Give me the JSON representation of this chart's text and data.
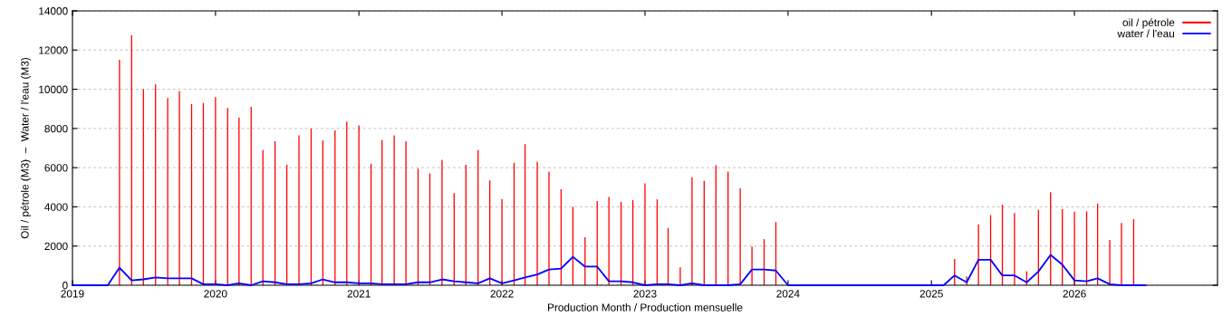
{
  "chart_data": {
    "type": "bar",
    "xlabel": "Production Month / Production mensuelle",
    "ylabel": "Oil / pétrole (M3)  –  Water / l'eau (M3)",
    "xlim": [
      "2019",
      "2027"
    ],
    "xticks": [
      "2019",
      "2020",
      "2021",
      "2022",
      "2023",
      "2024",
      "2025",
      "2026"
    ],
    "ylim": [
      0,
      14000
    ],
    "yticks": [
      0,
      2000,
      4000,
      6000,
      8000,
      10000,
      12000,
      14000
    ],
    "grid": "y",
    "legend": "top right",
    "series": [
      {
        "name": "oil / pétrole",
        "color": "#ff0000",
        "x": [
          "2019-05",
          "2019-06",
          "2019-07",
          "2019-08",
          "2019-09",
          "2019-10",
          "2019-11",
          "2019-12",
          "2020-01",
          "2020-02",
          "2020-03",
          "2020-04",
          "2020-05",
          "2020-06",
          "2020-07",
          "2020-08",
          "2020-09",
          "2020-10",
          "2020-11",
          "2020-12",
          "2021-01",
          "2021-02",
          "2021-03",
          "2021-04",
          "2021-05",
          "2021-06",
          "2021-07",
          "2021-08",
          "2021-09",
          "2021-10",
          "2021-11",
          "2021-12",
          "2022-01",
          "2022-02",
          "2022-03",
          "2022-04",
          "2022-05",
          "2022-06",
          "2022-07",
          "2022-08",
          "2022-09",
          "2022-10",
          "2022-11",
          "2022-12",
          "2023-01",
          "2023-02",
          "2023-03",
          "2023-04",
          "2023-05",
          "2023-06",
          "2023-07",
          "2023-08",
          "2023-09",
          "2023-10",
          "2023-11",
          "2023-12",
          "2025-03",
          "2025-04",
          "2025-05",
          "2025-06",
          "2025-07",
          "2025-08",
          "2025-09",
          "2025-10",
          "2025-11",
          "2025-12",
          "2026-01",
          "2026-02",
          "2026-03",
          "2026-04",
          "2026-05",
          "2026-06"
        ],
        "values": [
          11500,
          12750,
          10000,
          10250,
          9550,
          9900,
          9250,
          9300,
          9600,
          9050,
          8550,
          9100,
          6900,
          7350,
          6150,
          7650,
          8000,
          7400,
          7900,
          8350,
          8150,
          6200,
          7400,
          7650,
          7350,
          5950,
          5700,
          6400,
          4700,
          6150,
          6900,
          5350,
          4400,
          6250,
          7200,
          6300,
          5800,
          4900,
          4000,
          2450,
          4300,
          4500,
          4250,
          4350,
          5200,
          4380,
          2920,
          910,
          5510,
          5320,
          6120,
          5800,
          4940,
          1970,
          2350,
          3230,
          1340,
          450,
          3110,
          3580,
          4110,
          3690,
          720,
          3850,
          4750,
          3880,
          3750,
          3770,
          4170,
          2310,
          3180,
          3370
        ]
      },
      {
        "name": "water / l'eau",
        "type": "line",
        "color": "#0000ff",
        "x": [
          "2019-01",
          "2019-02",
          "2019-03",
          "2019-04",
          "2019-05",
          "2019-06",
          "2019-07",
          "2019-08",
          "2019-09",
          "2019-10",
          "2019-11",
          "2019-12",
          "2020-01",
          "2020-02",
          "2020-03",
          "2020-04",
          "2020-05",
          "2020-06",
          "2020-07",
          "2020-08",
          "2020-09",
          "2020-10",
          "2020-11",
          "2020-12",
          "2021-01",
          "2021-02",
          "2021-03",
          "2021-04",
          "2021-05",
          "2021-06",
          "2021-07",
          "2021-08",
          "2021-09",
          "2021-10",
          "2021-11",
          "2021-12",
          "2022-01",
          "2022-02",
          "2022-03",
          "2022-04",
          "2022-05",
          "2022-06",
          "2022-07",
          "2022-08",
          "2022-09",
          "2022-10",
          "2022-11",
          "2022-12",
          "2023-01",
          "2023-02",
          "2023-03",
          "2023-04",
          "2023-05",
          "2023-06",
          "2023-07",
          "2023-08",
          "2023-09",
          "2023-10",
          "2023-11",
          "2023-12",
          "2024-01",
          "2024-06",
          "2024-12",
          "2025-01",
          "2025-02",
          "2025-03",
          "2025-04",
          "2025-05",
          "2025-06",
          "2025-07",
          "2025-08",
          "2025-09",
          "2025-10",
          "2025-11",
          "2025-12",
          "2026-01",
          "2026-02",
          "2026-03",
          "2026-04",
          "2026-05",
          "2026-06",
          "2026-07"
        ],
        "values": [
          0,
          0,
          0,
          0,
          900,
          250,
          300,
          400,
          350,
          350,
          350,
          50,
          50,
          0,
          100,
          0,
          200,
          150,
          50,
          50,
          100,
          300,
          150,
          150,
          100,
          100,
          50,
          50,
          50,
          150,
          150,
          300,
          200,
          150,
          100,
          350,
          100,
          250,
          400,
          550,
          800,
          850,
          1450,
          950,
          950,
          200,
          200,
          150,
          0,
          50,
          50,
          0,
          100,
          0,
          0,
          0,
          50,
          800,
          800,
          750,
          0,
          0,
          0,
          0,
          0,
          500,
          150,
          1300,
          1300,
          500,
          500,
          150,
          700,
          1550,
          1050,
          250,
          200,
          350,
          50,
          0,
          0,
          0
        ]
      }
    ]
  }
}
